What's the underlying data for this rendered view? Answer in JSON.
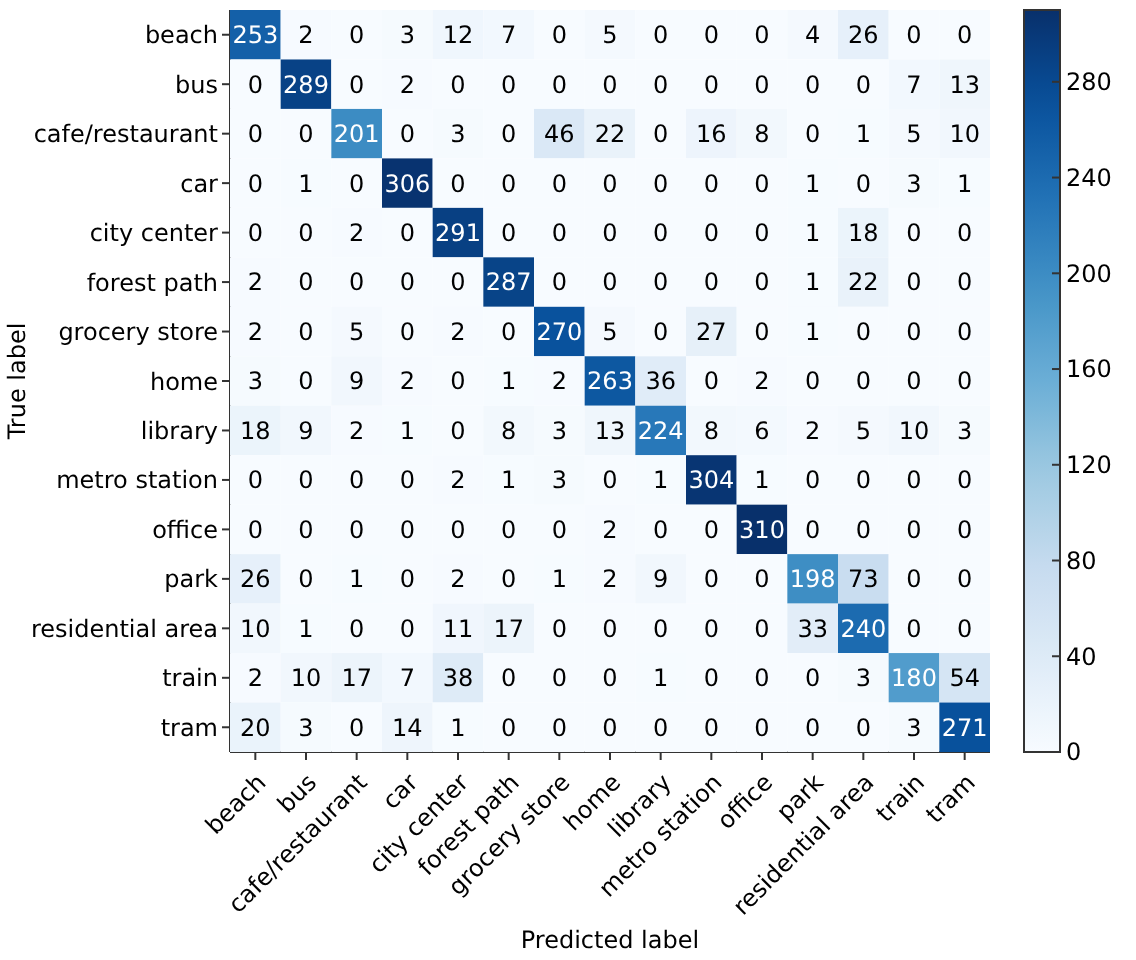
{
  "chart_data": {
    "type": "heatmap",
    "xlabel": "Predicted label",
    "ylabel": "True label",
    "categories": [
      "beach",
      "bus",
      "cafe/restaurant",
      "car",
      "city center",
      "forest path",
      "grocery store",
      "home",
      "library",
      "metro station",
      "office",
      "park",
      "residential area",
      "train",
      "tram"
    ],
    "y_categories": [
      "beach",
      "bus",
      "cafe/restaurant",
      "car",
      "city center",
      "forest path",
      "grocery store",
      "home",
      "library",
      "metro station",
      "office",
      "park",
      "residential area",
      "train",
      "tram"
    ],
    "cells": [
      [
        253,
        2,
        0,
        3,
        12,
        7,
        0,
        5,
        0,
        0,
        0,
        4,
        26,
        0,
        0
      ],
      [
        0,
        289,
        0,
        2,
        0,
        0,
        0,
        0,
        0,
        0,
        0,
        0,
        0,
        7,
        13
      ],
      [
        0,
        0,
        201,
        0,
        3,
        0,
        46,
        22,
        0,
        16,
        8,
        0,
        1,
        5,
        10
      ],
      [
        0,
        1,
        0,
        306,
        0,
        0,
        0,
        0,
        0,
        0,
        0,
        1,
        0,
        3,
        1
      ],
      [
        0,
        0,
        2,
        0,
        291,
        0,
        0,
        0,
        0,
        0,
        0,
        1,
        18,
        0,
        0
      ],
      [
        2,
        0,
        0,
        0,
        0,
        287,
        0,
        0,
        0,
        0,
        0,
        1,
        22,
        0,
        0
      ],
      [
        2,
        0,
        5,
        0,
        2,
        0,
        270,
        5,
        0,
        27,
        0,
        1,
        0,
        0,
        0
      ],
      [
        3,
        0,
        9,
        2,
        0,
        1,
        2,
        263,
        36,
        0,
        2,
        0,
        0,
        0,
        0
      ],
      [
        18,
        9,
        2,
        1,
        0,
        8,
        3,
        13,
        224,
        8,
        6,
        2,
        5,
        10,
        3
      ],
      [
        0,
        0,
        0,
        0,
        2,
        1,
        3,
        0,
        1,
        304,
        1,
        0,
        0,
        0,
        0
      ],
      [
        0,
        0,
        0,
        0,
        0,
        0,
        0,
        2,
        0,
        0,
        310,
        0,
        0,
        0,
        0
      ],
      [
        26,
        0,
        1,
        0,
        2,
        0,
        1,
        2,
        9,
        0,
        0,
        198,
        73,
        0,
        0
      ],
      [
        10,
        1,
        0,
        0,
        11,
        17,
        0,
        0,
        0,
        0,
        0,
        33,
        240,
        0,
        0
      ],
      [
        2,
        10,
        17,
        7,
        38,
        0,
        0,
        0,
        1,
        0,
        0,
        0,
        3,
        180,
        54
      ],
      [
        20,
        3,
        0,
        14,
        1,
        0,
        0,
        0,
        0,
        0,
        0,
        0,
        0,
        3,
        271
      ]
    ],
    "data_labels": true,
    "clim": [
      0,
      310
    ],
    "cticks": [
      0,
      40,
      80,
      120,
      160,
      200,
      240,
      280
    ]
  }
}
